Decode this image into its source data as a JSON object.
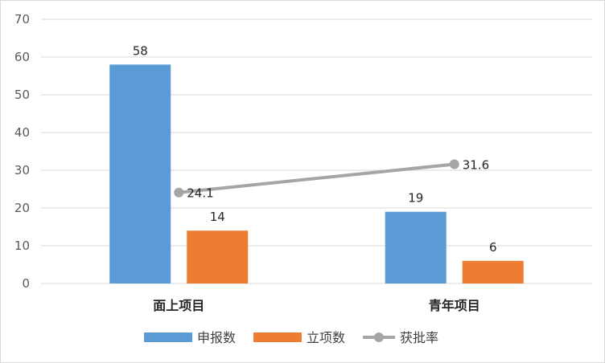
{
  "chart_data": {
    "type": "bar",
    "categories": [
      "面上项目",
      "青年项目"
    ],
    "series": [
      {
        "name": "申报数",
        "type": "bar",
        "values": [
          58,
          19
        ],
        "color": "#5B9BD5"
      },
      {
        "name": "立项数",
        "type": "bar",
        "values": [
          14,
          6
        ],
        "color": "#ED7D31"
      },
      {
        "name": "获批率",
        "type": "line",
        "values": [
          24.1,
          31.6
        ],
        "color": "#A5A5A5"
      }
    ],
    "ylim": [
      0,
      70
    ],
    "yticks": [
      0,
      10,
      20,
      30,
      40,
      50,
      60,
      70
    ],
    "grid": true,
    "legend": "bottom",
    "title": "",
    "xlabel": "",
    "ylabel": ""
  }
}
